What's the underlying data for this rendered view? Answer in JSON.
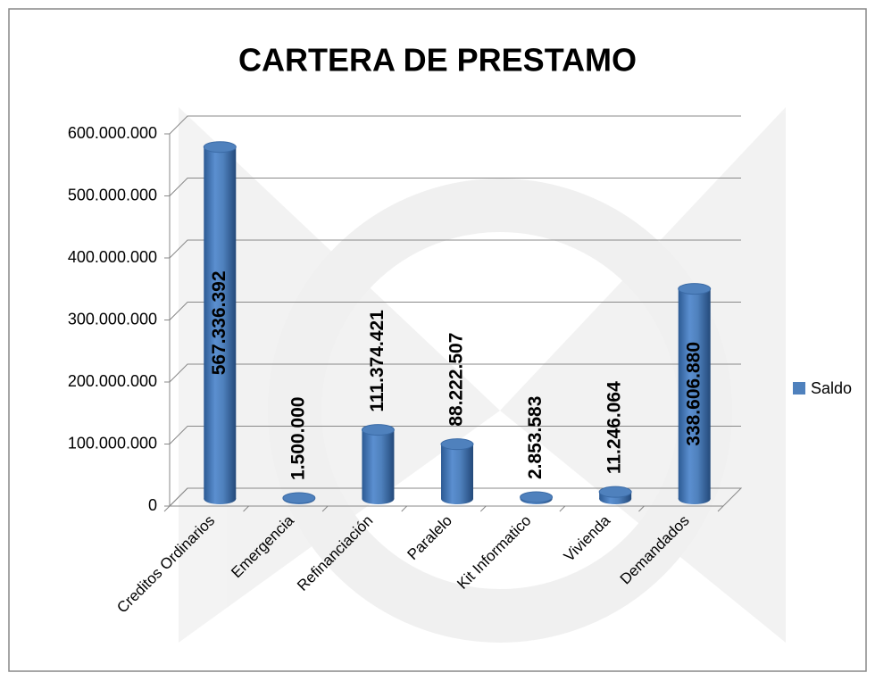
{
  "chart_data": {
    "type": "bar",
    "title": "CARTERA DE PRESTAMO",
    "categories": [
      "Creditos Ordinarios",
      "Emergencia",
      "Refinanciación",
      "Paralelo",
      "Kit Informatico",
      "Vivienda",
      "Demandados"
    ],
    "series": [
      {
        "name": "Saldo",
        "color": "#4f81bd",
        "values": [
          567336392,
          1500000,
          111374421,
          88222507,
          2853583,
          11246064,
          338606880
        ],
        "value_labels": [
          "567.336.392",
          "1.500.000",
          "111.374.421",
          "88.222.507",
          "2.853.583",
          "11.246.064",
          "338.606.880"
        ]
      }
    ],
    "ylim": [
      0,
      600000000
    ],
    "yticks": [
      0,
      {
        "value": 100000000,
        "label": "100.000.000"
      },
      {
        "value": 200000000,
        "label": "200.000.000"
      },
      {
        "value": 300000000,
        "label": "300.000.000"
      },
      {
        "value": 400000000,
        "label": "400.000.000"
      },
      {
        "value": 500000000,
        "label": "500.000.000"
      },
      {
        "value": 600000000,
        "label": "600.000.000"
      }
    ],
    "grid": true,
    "legend": "right"
  }
}
